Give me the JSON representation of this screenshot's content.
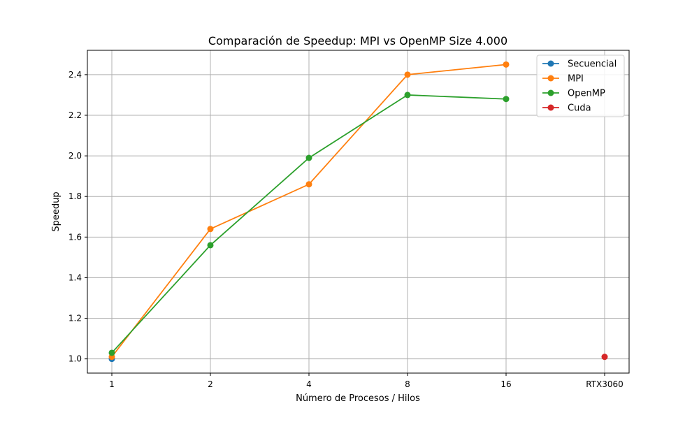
{
  "chart_data": {
    "type": "line",
    "title": "Comparación de Speedup: MPI vs OpenMP Size 4.000",
    "xlabel": "Número de Procesos / Hilos",
    "ylabel": "Speedup",
    "categories": [
      "1",
      "2",
      "4",
      "8",
      "16",
      "RTX3060"
    ],
    "ylim": [
      0.93,
      2.52
    ],
    "yticks": [
      "1.0",
      "1.2",
      "1.4",
      "1.6",
      "1.8",
      "2.0",
      "2.2",
      "2.4"
    ],
    "ytick_values": [
      1.0,
      1.2,
      1.4,
      1.6,
      1.8,
      2.0,
      2.2,
      2.4
    ],
    "grid": true,
    "legend_position": "top-right",
    "series": [
      {
        "name": "Secuencial",
        "color": "#1f77b4",
        "points": [
          {
            "category": "1",
            "value": 1.0
          }
        ]
      },
      {
        "name": "MPI",
        "color": "#ff7f0e",
        "points": [
          {
            "category": "1",
            "value": 1.01
          },
          {
            "category": "2",
            "value": 1.64
          },
          {
            "category": "4",
            "value": 1.86
          },
          {
            "category": "8",
            "value": 2.4
          },
          {
            "category": "16",
            "value": 2.45
          }
        ]
      },
      {
        "name": "OpenMP",
        "color": "#2ca02c",
        "points": [
          {
            "category": "1",
            "value": 1.03
          },
          {
            "category": "2",
            "value": 1.56
          },
          {
            "category": "4",
            "value": 1.99
          },
          {
            "category": "8",
            "value": 2.3
          },
          {
            "category": "16",
            "value": 2.28
          }
        ]
      },
      {
        "name": "Cuda",
        "color": "#d62728",
        "points": [
          {
            "category": "RTX3060",
            "value": 1.01
          }
        ]
      }
    ]
  }
}
